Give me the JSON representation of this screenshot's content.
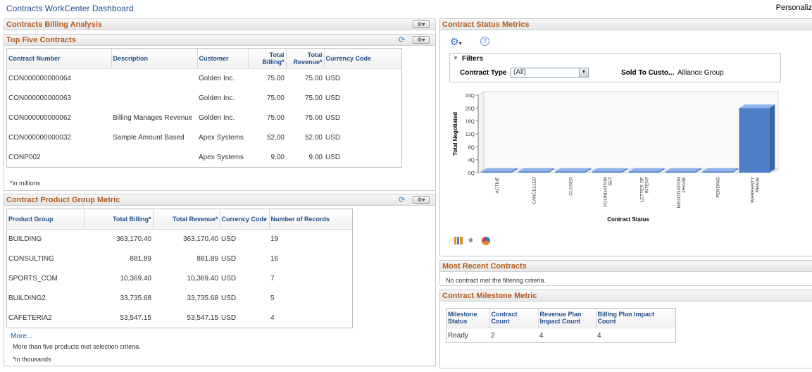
{
  "header": {
    "title": "Contracts WorkCenter Dashboard",
    "personalize": "Personaliz"
  },
  "billing": {
    "title": "Contracts Billing Analysis"
  },
  "top5": {
    "title": "Top Five Contracts",
    "columns": [
      "Contract Number",
      "Description",
      "Customer",
      "Total Billing*",
      "Total Revenue*",
      "Currency Code"
    ],
    "rows": [
      {
        "contract": "CON000000000064",
        "desc": "",
        "customer": "Golden Inc.",
        "billing": "75.00",
        "revenue": "75.00",
        "currency": "USD"
      },
      {
        "contract": "CON000000000063",
        "desc": "",
        "customer": "Golden Inc.",
        "billing": "75.00",
        "revenue": "75.00",
        "currency": "USD"
      },
      {
        "contract": "CON000000000062",
        "desc": "Billing Manages Revenue",
        "customer": "Golden Inc.",
        "billing": "75.00",
        "revenue": "75.00",
        "currency": "USD"
      },
      {
        "contract": "CON000000000032",
        "desc": "Sample Amount Based",
        "customer": "Apex Systems",
        "billing": "52.00",
        "revenue": "52.00",
        "currency": "USD"
      },
      {
        "contract": "CONP002",
        "desc": "",
        "customer": "Apex Systems",
        "billing": "9.00",
        "revenue": "9.00",
        "currency": "USD"
      }
    ],
    "note": "*in millions"
  },
  "product": {
    "title": "Contract Product Group Metric",
    "columns": [
      "Product Group",
      "Total Billing*",
      "Total Revenue*",
      "Currency Code",
      "Number of Records"
    ],
    "rows": [
      {
        "group": "BUILDING",
        "billing": "363,170.40",
        "revenue": "363,170.40",
        "currency": "USD",
        "records": "19"
      },
      {
        "group": "CONSULTING",
        "billing": "881.89",
        "revenue": "881.89",
        "currency": "USD",
        "records": "16"
      },
      {
        "group": "SPORTS_COM",
        "billing": "10,369.40",
        "revenue": "10,369.40",
        "currency": "USD",
        "records": "7"
      },
      {
        "group": "BUILDING2",
        "billing": "33,735.68",
        "revenue": "33,735.68",
        "currency": "USD",
        "records": "5"
      },
      {
        "group": "CAFETERIA2",
        "billing": "53,547.15",
        "revenue": "53,547.15",
        "currency": "USD",
        "records": "4"
      }
    ],
    "more": "More...",
    "more_note": "More than five products met selection criteria.",
    "note": "*in thousands"
  },
  "status": {
    "title": "Contract Status Metrics",
    "filters_label": "Filters",
    "contract_type_label": "Contract Type",
    "contract_type_value": "(All)",
    "sold_to_label": "Sold To Custo...",
    "sold_to_value": "Alliance Group"
  },
  "chart_data": {
    "type": "bar",
    "categories": [
      "ACTIVE",
      "CANCELLED",
      "CLOSED",
      "FOUNDATION SET",
      "LETTER OF INTENT",
      "NEGOTIATION PHASE",
      "PENDING",
      "WARRANTY PHASE"
    ],
    "values": [
      0,
      0,
      0,
      0,
      0,
      0,
      0,
      200
    ],
    "xlabel": "Contract Status",
    "ylabel": "Total Negotiated",
    "ylim": [
      0,
      240
    ],
    "yticks": [
      "0Q",
      "4Q",
      "8Q",
      "12Q",
      "16Q",
      "20Q",
      "24Q"
    ],
    "color": "#4f7fc9",
    "grid": false,
    "3d": true
  },
  "recent": {
    "title": "Most Recent Contracts",
    "message": "No contract met the filtering criteria."
  },
  "milestone": {
    "title": "Contract Milestone Metric",
    "columns": [
      "Milestone Status",
      "Contract Count",
      "Revenue Plan Impact Count",
      "Billing Plan Impact Count"
    ],
    "rows": [
      {
        "status": "Ready",
        "contracts": "2",
        "revenue": "4",
        "billing": "4"
      }
    ]
  },
  "icons": {
    "gear": "gear-icon",
    "refresh": "refresh-icon",
    "help": "help-icon",
    "collapse": "triangle-down-icon"
  }
}
